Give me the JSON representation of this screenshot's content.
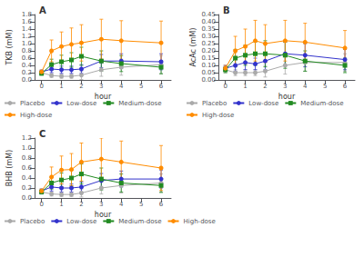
{
  "chart_data": [
    {
      "type": "line",
      "title": "A",
      "xlabel": "hour",
      "ylabel": "TKB (mM)",
      "x": [
        0,
        0.5,
        1,
        1.5,
        2,
        3,
        4,
        6
      ],
      "xlim": [
        -0.35,
        6.5
      ],
      "xticks": [
        0,
        1,
        2,
        3,
        4,
        5,
        6
      ],
      "ylim": [
        0.0,
        1.8
      ],
      "yticks": [
        {
          "value": 0.0,
          "label": "0.0"
        },
        0.2,
        0.4,
        0.6,
        0.8,
        {
          "value": 1.0,
          "label": "1.0"
        },
        1.2,
        1.4,
        1.6,
        1.8
      ],
      "grid": false,
      "legend": "bottom",
      "series": [
        {
          "name": "Placebo",
          "color": "#aaaaaa",
          "marker": "circle",
          "values": [
            0.2,
            0.12,
            0.1,
            0.1,
            0.13,
            0.28,
            0.35,
            0.42
          ],
          "yerr": [
            0.05,
            0.05,
            0.05,
            0.05,
            0.12,
            0.18,
            0.22,
            0.25
          ]
        },
        {
          "name": "Low-dose",
          "color": "#3333cc",
          "marker": "circle",
          "values": [
            0.22,
            0.3,
            0.28,
            0.28,
            0.3,
            0.52,
            0.52,
            0.5
          ],
          "yerr": [
            0.05,
            0.1,
            0.1,
            0.1,
            0.12,
            0.18,
            0.2,
            0.22
          ]
        },
        {
          "name": "Medium-dose",
          "color": "#228b22",
          "marker": "square",
          "values": [
            0.18,
            0.42,
            0.5,
            0.55,
            0.65,
            0.52,
            0.45,
            0.35
          ],
          "yerr": [
            0.05,
            0.15,
            0.18,
            0.2,
            0.25,
            0.28,
            0.22,
            0.18
          ]
        },
        {
          "name": "High-dose",
          "color": "#ff8c00",
          "marker": "circle",
          "values": [
            0.22,
            0.8,
            0.92,
            0.98,
            1.02,
            1.12,
            1.08,
            1.02
          ],
          "yerr": [
            0.05,
            0.3,
            0.4,
            0.45,
            0.5,
            0.55,
            0.55,
            0.6
          ]
        }
      ]
    },
    {
      "type": "line",
      "title": "B",
      "xlabel": "hour",
      "ylabel": "AcAc (mM)",
      "x": [
        0,
        0.5,
        1,
        1.5,
        2,
        3,
        4,
        6
      ],
      "xlim": [
        -0.35,
        6.5
      ],
      "xticks": [
        0,
        1,
        2,
        3,
        4,
        5,
        6
      ],
      "ylim": [
        0.0,
        0.45
      ],
      "yticks": [
        {
          "value": 0.0,
          "label": "0.00"
        },
        0.05,
        {
          "value": 0.1,
          "label": "0.10"
        },
        0.15,
        {
          "value": 0.2,
          "label": "0.20"
        },
        0.25,
        {
          "value": 0.3,
          "label": "0.30"
        },
        0.35,
        {
          "value": 0.4,
          "label": "0.40"
        },
        0.45
      ],
      "grid": false,
      "legend": "bottom",
      "series": [
        {
          "name": "Placebo",
          "color": "#aaaaaa",
          "marker": "circle",
          "values": [
            0.07,
            0.05,
            0.05,
            0.05,
            0.06,
            0.1,
            0.12,
            0.12
          ],
          "yerr": [
            0.02,
            0.02,
            0.02,
            0.02,
            0.04,
            0.06,
            0.06,
            0.06
          ]
        },
        {
          "name": "Low-dose",
          "color": "#3333cc",
          "marker": "circle",
          "values": [
            0.08,
            0.1,
            0.12,
            0.11,
            0.13,
            0.18,
            0.17,
            0.14
          ],
          "yerr": [
            0.02,
            0.04,
            0.05,
            0.04,
            0.06,
            0.08,
            0.08,
            0.07
          ]
        },
        {
          "name": "Medium-dose",
          "color": "#228b22",
          "marker": "square",
          "values": [
            0.07,
            0.15,
            0.17,
            0.18,
            0.18,
            0.17,
            0.13,
            0.1
          ],
          "yerr": [
            0.02,
            0.06,
            0.07,
            0.08,
            0.09,
            0.09,
            0.07,
            0.05
          ]
        },
        {
          "name": "High-dose",
          "color": "#ff8c00",
          "marker": "circle",
          "values": [
            0.08,
            0.2,
            0.23,
            0.27,
            0.25,
            0.27,
            0.26,
            0.22
          ],
          "yerr": [
            0.02,
            0.1,
            0.12,
            0.14,
            0.13,
            0.14,
            0.13,
            0.12
          ]
        }
      ]
    },
    {
      "type": "line",
      "title": "C",
      "xlabel": "hour",
      "ylabel": "BHB (mM)",
      "x": [
        0,
        0.5,
        1,
        1.5,
        2,
        3,
        4,
        6
      ],
      "xlim": [
        -0.35,
        6.5
      ],
      "xticks": [
        0,
        1,
        2,
        3,
        4,
        5,
        6
      ],
      "ylim": [
        0.0,
        1.2
      ],
      "yticks": [
        {
          "value": 0.0,
          "label": "0.0"
        },
        0.2,
        0.4,
        0.6,
        0.8,
        {
          "value": 1.0,
          "label": "1.0"
        },
        1.2
      ],
      "grid": false,
      "legend": "bottom",
      "series": [
        {
          "name": "Placebo",
          "color": "#aaaaaa",
          "marker": "circle",
          "values": [
            0.12,
            0.08,
            0.07,
            0.07,
            0.1,
            0.2,
            0.25,
            0.3
          ],
          "yerr": [
            0.04,
            0.04,
            0.04,
            0.04,
            0.08,
            0.12,
            0.15,
            0.18
          ]
        },
        {
          "name": "Low-dose",
          "color": "#3333cc",
          "marker": "circle",
          "values": [
            0.14,
            0.22,
            0.2,
            0.2,
            0.22,
            0.35,
            0.38,
            0.38
          ],
          "yerr": [
            0.04,
            0.08,
            0.08,
            0.08,
            0.1,
            0.14,
            0.16,
            0.18
          ]
        },
        {
          "name": "Medium-dose",
          "color": "#228b22",
          "marker": "square",
          "values": [
            0.12,
            0.3,
            0.36,
            0.4,
            0.48,
            0.38,
            0.3,
            0.25
          ],
          "yerr": [
            0.04,
            0.12,
            0.14,
            0.16,
            0.2,
            0.22,
            0.18,
            0.14
          ]
        },
        {
          "name": "High-dose",
          "color": "#ff8c00",
          "marker": "circle",
          "values": [
            0.14,
            0.42,
            0.56,
            0.57,
            0.72,
            0.78,
            0.72,
            0.6
          ],
          "yerr": [
            0.04,
            0.2,
            0.28,
            0.32,
            0.38,
            0.42,
            0.42,
            0.45
          ]
        }
      ]
    }
  ]
}
